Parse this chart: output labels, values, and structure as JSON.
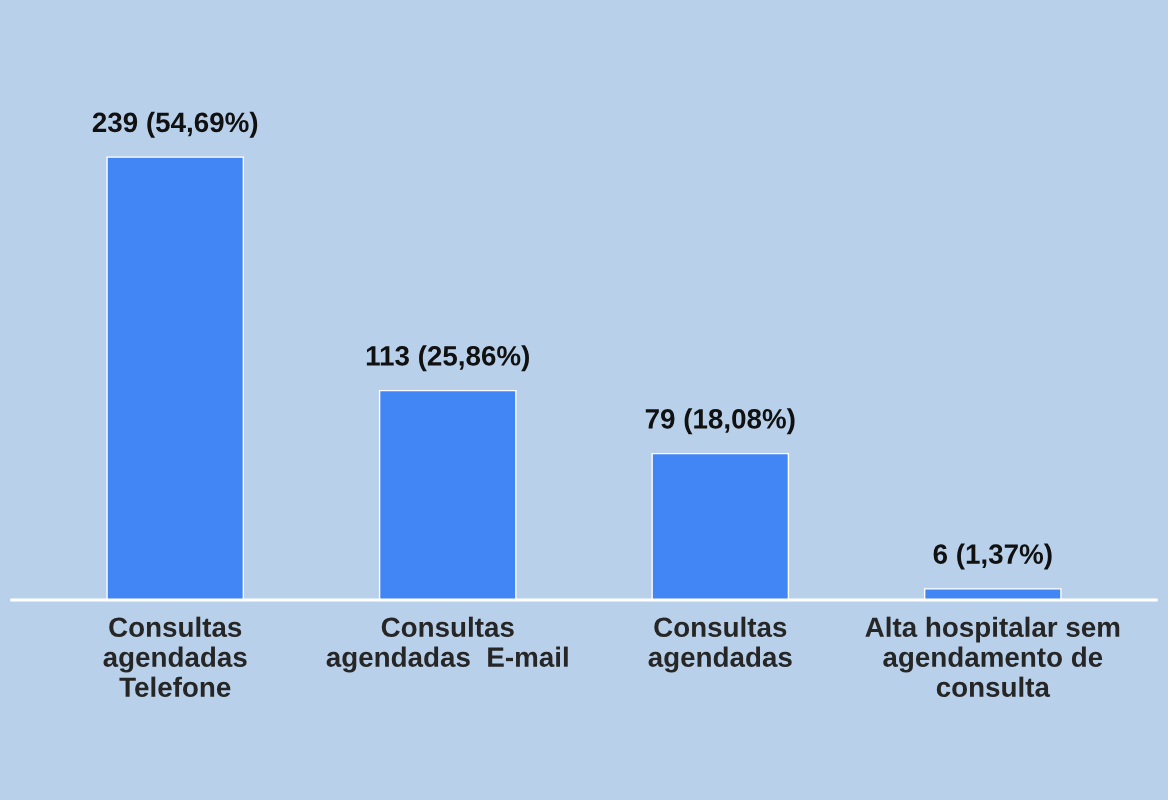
{
  "chart_data": {
    "type": "bar",
    "categories": [
      "Consultas\nagendadas\nTelefone",
      "Consultas\nagendadas  E-mail",
      "Consultas\nagendadas",
      "Alta hospitalar sem\nagendamento de\nconsulta"
    ],
    "values": [
      239,
      113,
      79,
      6
    ],
    "value_labels": [
      "239 (54,69%)",
      "113 (25,86%)",
      "79 (18,08%)",
      "6 (1,37%)"
    ],
    "color": "#4285f4",
    "grid": false,
    "legend": false
  }
}
